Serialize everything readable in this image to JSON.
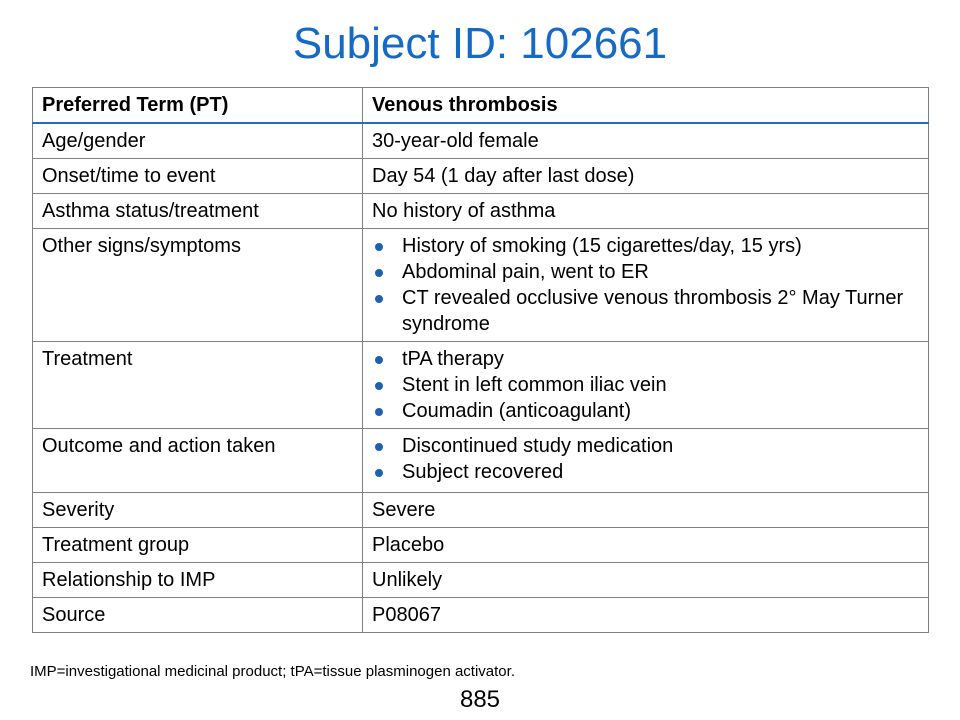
{
  "title": "Subject ID: 102661",
  "table": {
    "header": [
      "Preferred Term (PT)",
      "Venous thrombosis"
    ],
    "rows": [
      {
        "label": "Age/gender",
        "value": "30-year-old female"
      },
      {
        "label": "Onset/time to event",
        "value": "Day 54 (1 day after last dose)"
      },
      {
        "label": "Asthma status/treatment",
        "value": "No history of asthma"
      },
      {
        "label": "Other signs/symptoms",
        "bullets": [
          "History of smoking (15 cigarettes/day, 15 yrs)",
          "Abdominal pain, went to ER",
          "CT revealed occlusive venous thrombosis 2° May Turner syndrome"
        ]
      },
      {
        "label": "Treatment",
        "bullets": [
          "tPA therapy",
          "Stent in left common iliac vein",
          "Coumadin (anticoagulant)"
        ]
      },
      {
        "label": "Outcome and action taken",
        "bullets": [
          "Discontinued study medication",
          "Subject recovered"
        ]
      },
      {
        "label": "Severity",
        "value": "Severe"
      },
      {
        "label": "Treatment group",
        "value": "Placebo"
      },
      {
        "label": "Relationship to IMP",
        "value": "Unlikely"
      },
      {
        "label": "Source",
        "value": "P08067"
      }
    ]
  },
  "footnote": "IMP=investigational medicinal product; tPA=tissue plasminogen activator.",
  "page_number": "885",
  "colors": {
    "title": "#1569c7",
    "bullet": "#1f5fb4",
    "header_rule": "#1f6fbf",
    "border": "#808080"
  }
}
